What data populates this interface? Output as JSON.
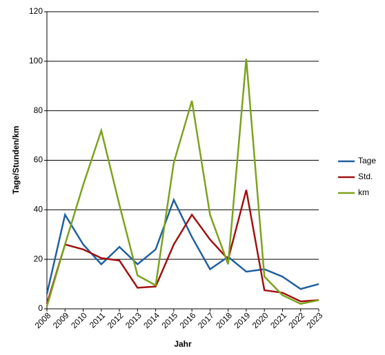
{
  "chart_data": {
    "type": "line",
    "x_label": "Jahr",
    "y_label": "Tage/Stunden/km",
    "categories": [
      "2008",
      "2009",
      "2010",
      "2011",
      "2012",
      "2013",
      "2014",
      "2015",
      "2016",
      "2017",
      "2018",
      "2019",
      "2020",
      "2021",
      "2022",
      "2023"
    ],
    "series": [
      {
        "name": "Tage",
        "color": "#1f5fa0",
        "values": [
          6,
          38,
          26,
          18,
          25,
          18,
          24,
          44,
          29,
          16,
          21,
          15,
          16,
          13,
          8,
          10
        ]
      },
      {
        "name": "Std.",
        "color": "#a01010",
        "values": [
          2,
          26,
          24,
          20.5,
          19.5,
          8.5,
          9,
          26,
          38,
          28,
          20,
          48,
          7.5,
          6.5,
          3,
          3.5
        ]
      },
      {
        "name": "km",
        "color": "#7ba21c",
        "values": [
          1,
          26,
          50,
          72,
          42,
          13.5,
          9.5,
          59,
          84,
          38,
          18,
          101,
          13,
          5.5,
          2,
          3.5
        ]
      }
    ],
    "ylim": [
      0,
      120
    ],
    "yticks": [
      0,
      20,
      40,
      60,
      80,
      100,
      120
    ],
    "grid": true,
    "legend": "right"
  }
}
